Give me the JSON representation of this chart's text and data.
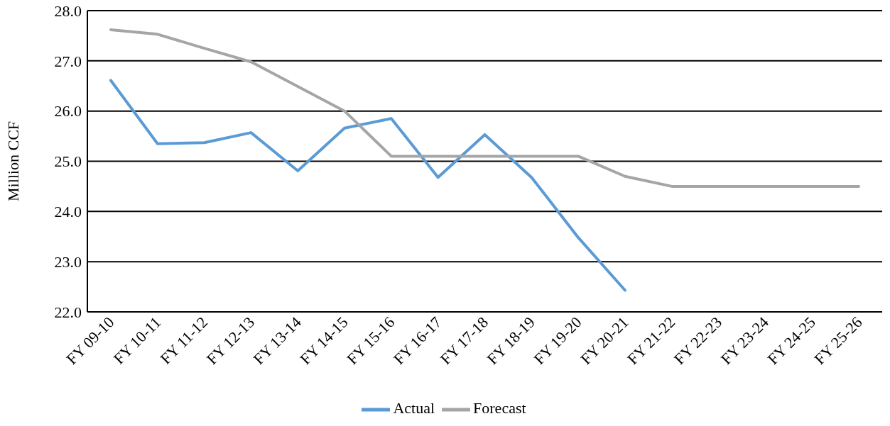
{
  "chart_data": {
    "type": "line",
    "ylabel": "Million CCF",
    "categories": [
      "FY 09-10",
      "FY 10-11",
      "FY 11-12",
      "FY 12-13",
      "FY 13-14",
      "FY 14-15",
      "FY 15-16",
      "FY 16-17",
      "FY 17-18",
      "FY 18-19",
      "FY 19-20",
      "FY 20-21",
      "FY 21-22",
      "FY 22-23",
      "FY 23-24",
      "FY 24-25",
      "FY 25-26"
    ],
    "series": [
      {
        "name": "Actual",
        "color": "#5b9bd5",
        "values": [
          26.61,
          25.35,
          25.37,
          25.57,
          24.81,
          25.66,
          25.85,
          24.68,
          25.53,
          24.68,
          23.48,
          22.43,
          null,
          null,
          null,
          null,
          null
        ]
      },
      {
        "name": "Forecast",
        "color": "#a5a5a5",
        "values": [
          27.62,
          27.53,
          27.25,
          26.98,
          26.49,
          26.0,
          25.1,
          25.1,
          25.1,
          25.1,
          25.1,
          24.7,
          24.5,
          24.5,
          24.5,
          24.5,
          24.5
        ]
      }
    ],
    "ylim": [
      22,
      28
    ],
    "yticks": [
      {
        "value": 22,
        "label": "22.0"
      },
      {
        "value": 23,
        "label": "23.0"
      },
      {
        "value": 24,
        "label": "24.0"
      },
      {
        "value": 25,
        "label": "25.0"
      },
      {
        "value": 26,
        "label": "26.0"
      },
      {
        "value": 27,
        "label": "27.0"
      },
      {
        "value": 28,
        "label": "28.0"
      }
    ],
    "grid": "y",
    "legend": "bottom",
    "marker": "none",
    "line_style": "solid"
  }
}
